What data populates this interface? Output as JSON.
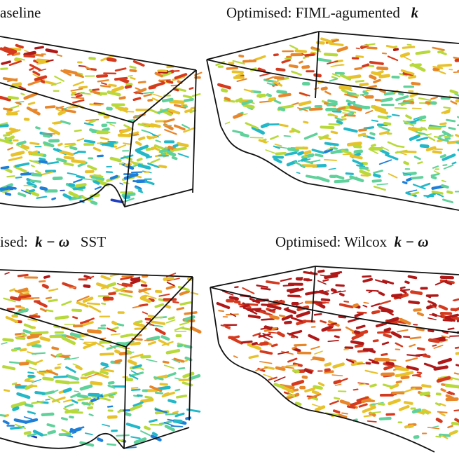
{
  "panels": [
    {
      "title": "aseline"
    },
    {
      "title": "Optimised: FIML-agumented",
      "math": "k"
    },
    {
      "title_prefix": "ised:",
      "math": "k − ω",
      "title_suffix": "SST"
    },
    {
      "title": "Optimised: Wilcox",
      "math": "k − ω"
    }
  ],
  "colormap": [
    "#1f3fbf",
    "#1e7fd8",
    "#22b8c8",
    "#5fd19a",
    "#b8d93a",
    "#e8c22a",
    "#e8862a",
    "#d63a1e",
    "#b01818"
  ],
  "box_line_color": "#111111"
}
